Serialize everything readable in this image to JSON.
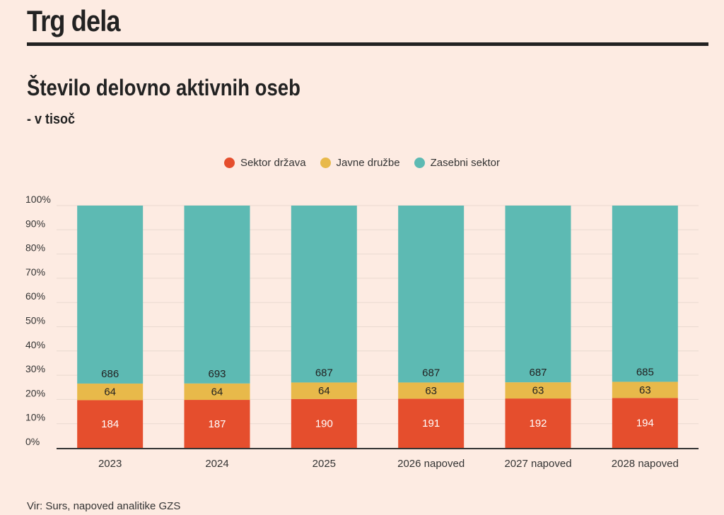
{
  "header": {
    "title": "Trg dela"
  },
  "chart_data": {
    "type": "bar",
    "stacked": true,
    "normalized": true,
    "title": "Število delovno aktivnih oseb",
    "subtitle": "- v tisoč",
    "categories": [
      "2023",
      "2024",
      "2025",
      "2026 napoved",
      "2027 napoved",
      "2028 napoved"
    ],
    "series": [
      {
        "name": "Sektor država",
        "color": "#e54e2d",
        "values": [
          184,
          187,
          190,
          191,
          192,
          194
        ]
      },
      {
        "name": "Javne družbe",
        "color": "#e8b94a",
        "values": [
          64,
          64,
          64,
          63,
          63,
          63
        ]
      },
      {
        "name": "Zasebni sektor",
        "color": "#5dbab3",
        "values": [
          686,
          693,
          687,
          687,
          687,
          685
        ]
      }
    ],
    "y_ticks": [
      "0%",
      "10%",
      "20%",
      "30%",
      "40%",
      "50%",
      "60%",
      "70%",
      "80%",
      "90%",
      "100%"
    ],
    "ylim": [
      0,
      100
    ],
    "legend_position": "top-center",
    "grid": true
  },
  "source": "Vir: Surs, napoved analitike GZS"
}
